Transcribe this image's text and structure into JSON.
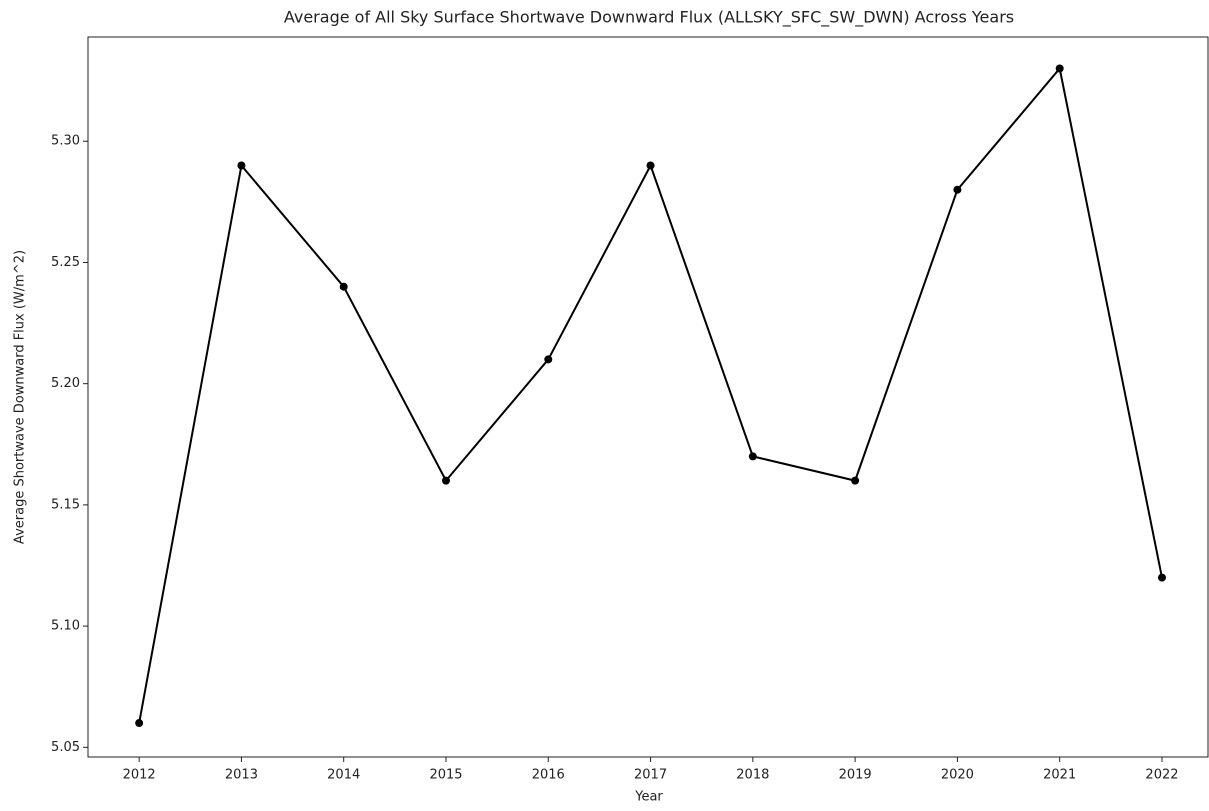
{
  "chart_data": {
    "type": "line",
    "title": "Average of All Sky Surface Shortwave Downward Flux (ALLSKY_SFC_SW_DWN) Across Years",
    "x_label": "Year",
    "y_label": "Average Shortwave Downward Flux (W/m^2)",
    "x": [
      2012,
      2013,
      2014,
      2015,
      2016,
      2017,
      2018,
      2019,
      2020,
      2021,
      2022
    ],
    "series": [
      {
        "name": "ALLSKY_SFC_SW_DWN",
        "color": "#000000",
        "values": [
          5.06,
          5.29,
          5.24,
          5.16,
          5.21,
          5.29,
          5.17,
          5.16,
          5.28,
          5.33,
          5.12
        ]
      }
    ],
    "xlim": [
      2011.5,
      2022.45
    ],
    "xticks": [
      2012,
      2013,
      2014,
      2015,
      2016,
      2017,
      2018,
      2019,
      2020,
      2021,
      2022
    ],
    "ylim": [
      5.046,
      5.343
    ],
    "yticks": [
      5.05,
      {
        "value": 5.1,
        "label": "5.10"
      },
      5.15,
      {
        "value": 5.2,
        "label": "5.20"
      },
      5.25,
      {
        "value": 5.3,
        "label": "5.30"
      }
    ],
    "grid": false,
    "markers": true
  }
}
